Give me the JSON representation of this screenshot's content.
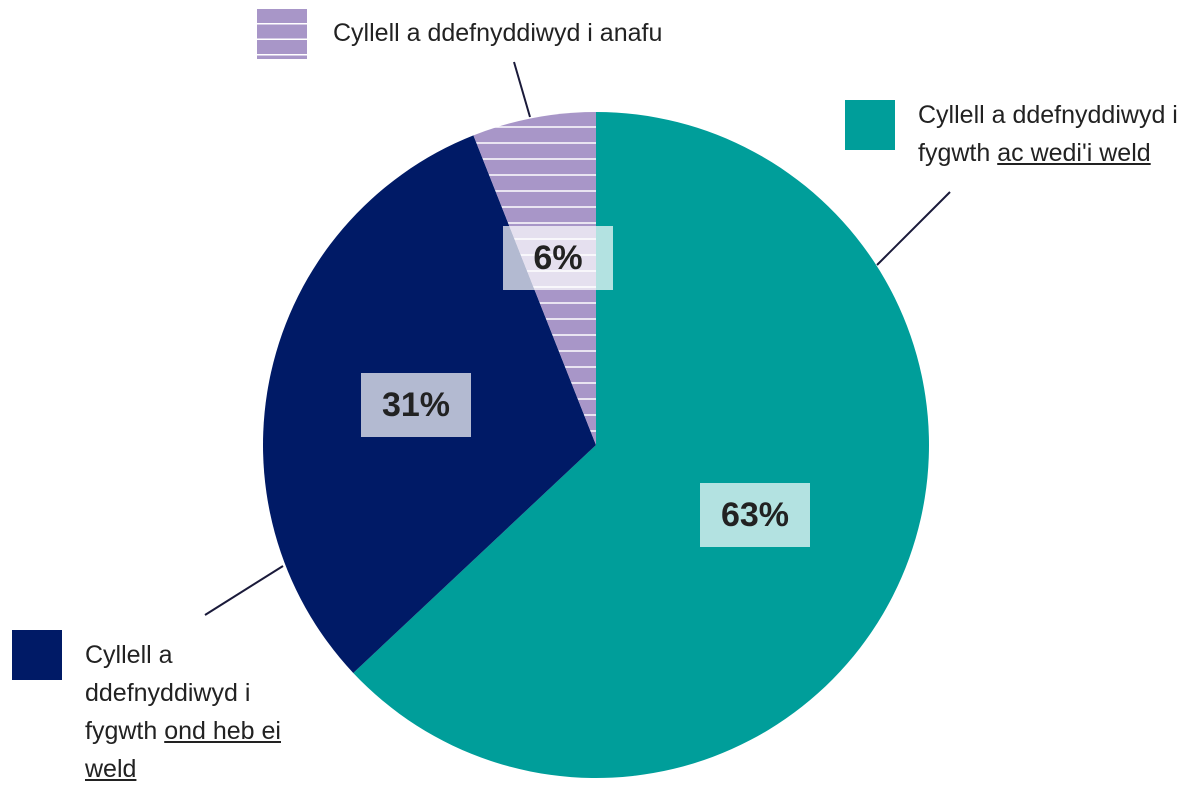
{
  "chart_data": {
    "type": "pie",
    "categories": [
      [
        {
          "text": "Cyllell a ddefnyddiwyd i fygwth"
        },
        {
          "text": "ac wedi'i weld",
          "underline": true
        }
      ],
      [
        {
          "text": "Cyllell a ddefnyddiwyd i fygwth"
        },
        {
          "text": "ond heb ei weld",
          "underline": true
        }
      ],
      [
        {
          "text": "Cyllell a ddefnyddiwyd i anafu"
        }
      ]
    ],
    "values": [
      63,
      31,
      6
    ],
    "value_labels": [
      "63%",
      "31%",
      "6%"
    ],
    "colors": [
      "#009e9a",
      "#001a66",
      "#a896c8"
    ],
    "hatched": [
      false,
      false,
      true
    ]
  }
}
